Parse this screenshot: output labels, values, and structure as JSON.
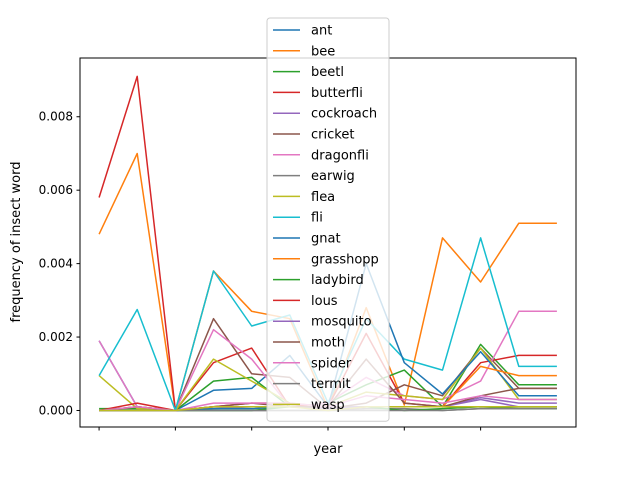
{
  "chart_data": {
    "type": "line",
    "title": "",
    "xlabel": "year",
    "ylabel": "frequency of insect word",
    "xticks": [
      "",
      "",
      "",
      "",
      "",
      ""
    ],
    "ylim": [
      -0.00045,
      0.0096
    ],
    "yticks": [
      "0.000",
      "0.002",
      "0.004",
      "0.006",
      "0.008"
    ],
    "ytick_values": [
      0,
      0.002,
      0.004,
      0.006,
      0.008
    ],
    "grid": false,
    "legend_position": "upper center",
    "x": [
      0,
      1,
      2,
      3,
      4,
      5,
      6,
      7,
      8,
      9,
      10,
      11,
      12
    ],
    "series": [
      {
        "name": "ant",
        "color": "#1f77b4",
        "values": [
          0.0019,
          0.0001,
          0.0,
          0.00055,
          0.0006,
          0.0015,
          0.0001,
          0.0001,
          0.0001,
          0.0001,
          0.0001,
          0.0001,
          0.0001
        ]
      },
      {
        "name": "bee",
        "color": "#ff7f0e",
        "values": [
          0.0048,
          0.007,
          0.0,
          0.0038,
          0.0027,
          0.0025,
          5e-05,
          0.0028,
          0.00015,
          0.0047,
          0.0035,
          0.0051,
          0.0051
        ]
      },
      {
        "name": "beetl",
        "color": "#2ca02c",
        "values": [
          5e-05,
          5e-05,
          0.0,
          0.0008,
          0.0009,
          0.0001,
          0.0002,
          0.0007,
          0.0011,
          0.0001,
          0.0018,
          0.0007,
          0.0007
        ]
      },
      {
        "name": "butterfli",
        "color": "#d62728",
        "values": [
          0.0058,
          0.0091,
          0.0,
          0.0013,
          0.0017,
          0.0001,
          0.0001,
          0.0021,
          0.0002,
          0.0001,
          0.0013,
          0.0015,
          0.0015
        ]
      },
      {
        "name": "cockroach",
        "color": "#9467bd",
        "values": [
          0.0,
          0.0,
          0.0,
          5e-05,
          0.0001,
          0.0001,
          0.0001,
          0.0001,
          0.0001,
          0.0001,
          0.00035,
          0.0002,
          0.0002
        ]
      },
      {
        "name": "cricket",
        "color": "#8c564b",
        "values": [
          0.0,
          0.0001,
          0.0,
          0.0025,
          0.001,
          0.0009,
          5e-05,
          0.0002,
          0.0007,
          0.0004,
          0.0017,
          0.0006,
          0.0006
        ]
      },
      {
        "name": "dragonfli",
        "color": "#e377c2",
        "values": [
          0.0019,
          0.0001,
          0.0,
          0.0022,
          0.0014,
          0.0001,
          0.0002,
          0.0009,
          0.0004,
          0.0003,
          0.0008,
          0.0027,
          0.0027
        ]
      },
      {
        "name": "earwig",
        "color": "#7f7f7f",
        "values": [
          0.0,
          0.0,
          0.0,
          0.0,
          0.0,
          0.0,
          0.0,
          5e-05,
          5e-05,
          0.0,
          5e-05,
          5e-05,
          5e-05
        ]
      },
      {
        "name": "flea",
        "color": "#bcbd22",
        "values": [
          0.00095,
          5e-05,
          0.0,
          0.0014,
          0.0008,
          0.0002,
          0.0001,
          0.0005,
          0.0004,
          0.0003,
          0.0017,
          0.0003,
          0.0003
        ]
      },
      {
        "name": "fli",
        "color": "#17becf",
        "values": [
          0.00095,
          0.00275,
          0.0,
          0.0038,
          0.0023,
          0.0026,
          0.0002,
          0.0025,
          0.0014,
          0.0011,
          0.0047,
          0.0012,
          0.0012
        ]
      },
      {
        "name": "gnat",
        "color": "#1f77b4",
        "values": [
          0.0,
          0.0,
          0.0,
          5e-05,
          5e-05,
          0.0001,
          0.0001,
          0.004,
          0.0013,
          0.00045,
          0.0016,
          0.0004,
          0.0004
        ]
      },
      {
        "name": "grasshopp",
        "color": "#ff7f0e",
        "values": [
          0.0,
          0.0,
          0.0,
          0.0001,
          0.0001,
          0.0001,
          5e-05,
          0.0001,
          0.0001,
          0.0001,
          0.0012,
          0.00095,
          0.00095
        ]
      },
      {
        "name": "ladybird",
        "color": "#2ca02c",
        "values": [
          0.0,
          0.0,
          0.0,
          0.0,
          0.0,
          0.0001,
          5e-05,
          0.0001,
          0.0,
          5e-05,
          0.0001,
          5e-05,
          5e-05
        ]
      },
      {
        "name": "lous",
        "color": "#d62728",
        "values": [
          0.0,
          0.0002,
          0.0,
          0.0001,
          0.0002,
          0.0002,
          0.0,
          0.0001,
          0.0001,
          0.0001,
          0.0001,
          0.0001,
          0.0001
        ]
      },
      {
        "name": "mosquito",
        "color": "#9467bd",
        "values": [
          0.0,
          0.0,
          0.0,
          0.0001,
          0.0001,
          0.0001,
          5e-05,
          0.0001,
          0.0001,
          0.0001,
          0.0003,
          0.0001,
          0.0001
        ]
      },
      {
        "name": "moth",
        "color": "#8c564b",
        "values": [
          0.0,
          0.0001,
          0.0,
          0.0001,
          0.0002,
          0.0001,
          0.0001,
          0.0014,
          0.0002,
          0.0001,
          0.0004,
          0.0006,
          0.0006
        ]
      },
      {
        "name": "spider",
        "color": "#e377c2",
        "values": [
          0.0,
          0.0001,
          0.0,
          0.0002,
          0.0002,
          0.0002,
          0.0001,
          0.0004,
          0.0003,
          0.0002,
          0.0004,
          0.0003,
          0.0003
        ]
      },
      {
        "name": "termit",
        "color": "#7f7f7f",
        "values": [
          0.0,
          0.0,
          0.0,
          0.0,
          0.0,
          0.0,
          0.0,
          0.0,
          0.0,
          0.0,
          5e-05,
          5e-05,
          5e-05
        ]
      },
      {
        "name": "wasp",
        "color": "#bcbd22",
        "values": [
          0.0,
          0.0,
          0.0,
          0.0001,
          0.0001,
          0.0001,
          0.0,
          0.0001,
          0.0001,
          0.0001,
          0.0001,
          0.0001,
          0.0001
        ]
      }
    ]
  }
}
